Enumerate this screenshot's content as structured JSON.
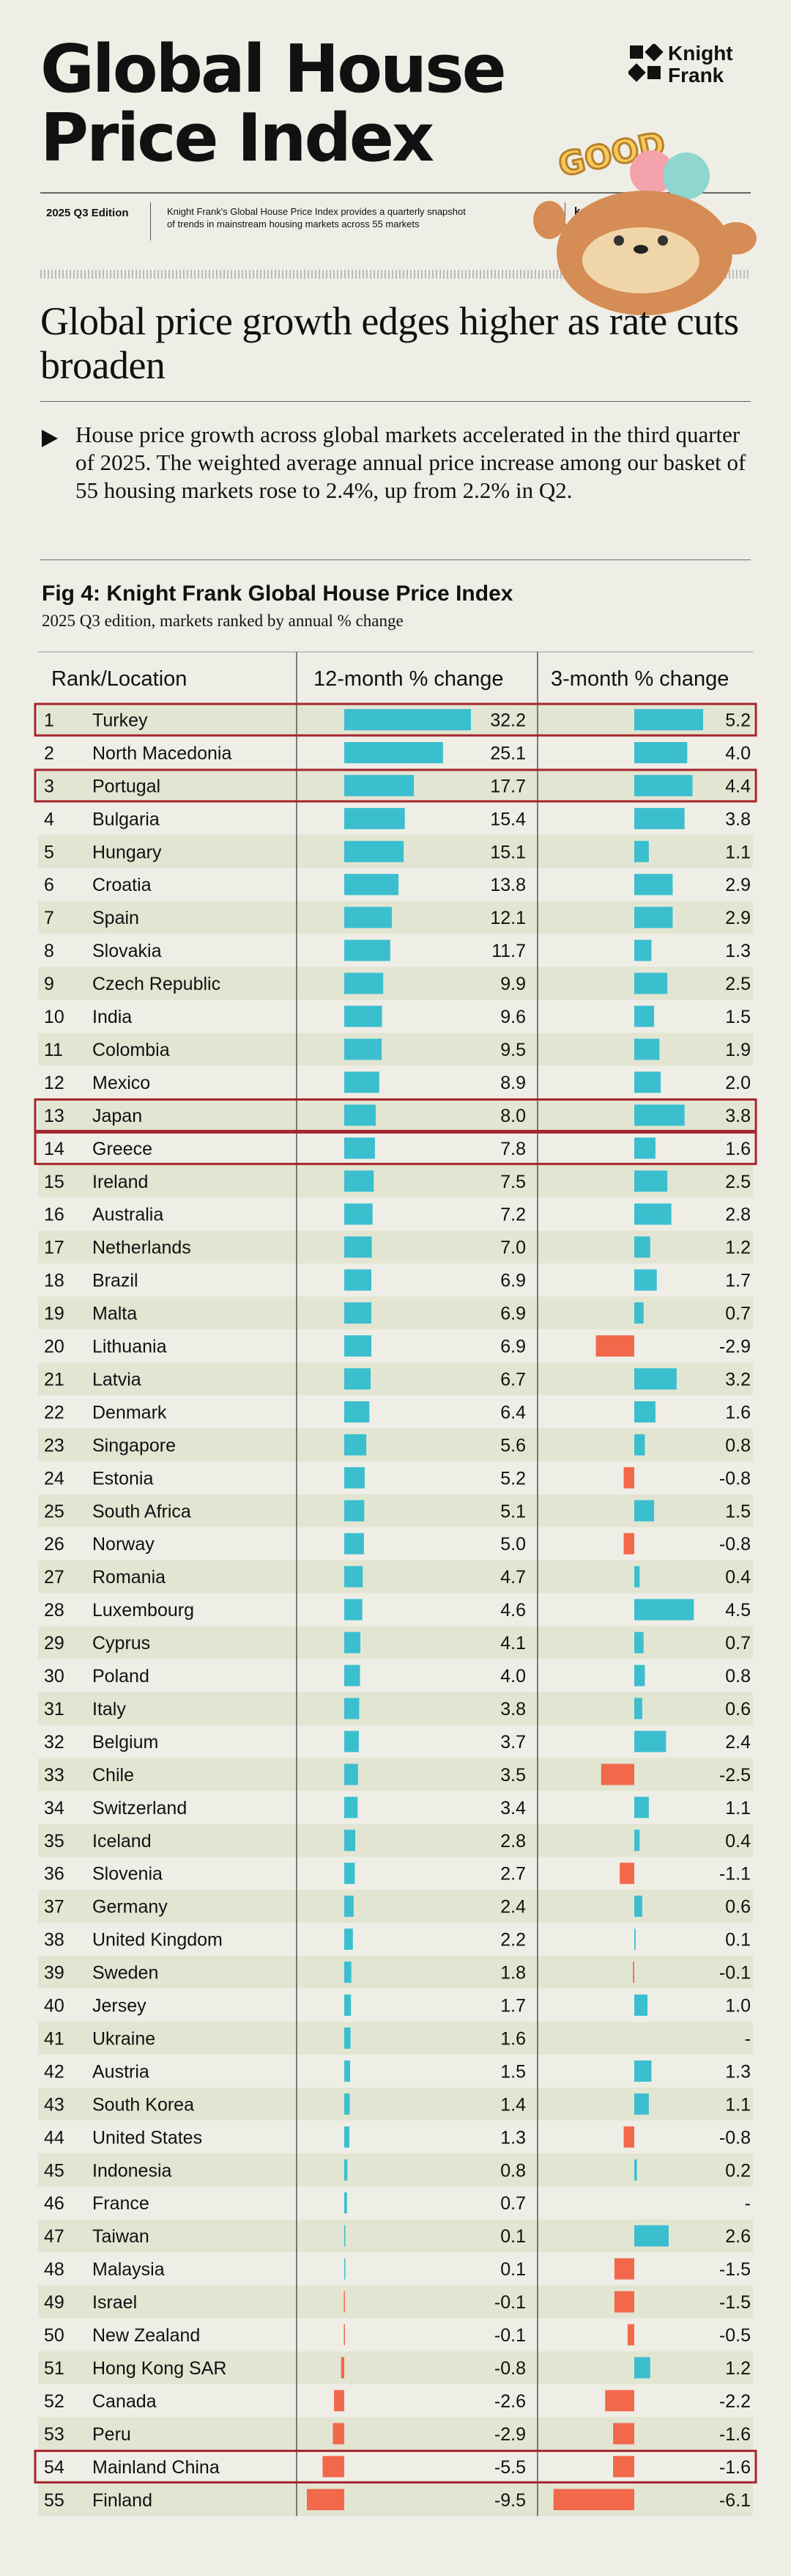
{
  "header": {
    "title_line1": "Global House",
    "title_line2": "Price Index",
    "logo_line1": "Knight",
    "logo_line2": "Frank",
    "edition": "2025 Q3 Edition",
    "description": "Knight Frank's Global House Price Index provides a quarterly snapshot of trends in mainstream housing markets across 55 markets",
    "partial_text": "k",
    "sticker_text": "GOOD"
  },
  "headline": "Global price growth edges higher as rate cuts broaden",
  "bullet": "House price growth across global markets accelerated in the third quarter of 2025. The weighted average annual price increase among our basket of 55 housing markets rose to 2.4%, up from 2.2% in Q2.",
  "figure": {
    "title": "Fig 4: Knight Frank Global House Price Index",
    "subtitle": "2025 Q3 edition, markets ranked by annual % change"
  },
  "colors": {
    "positive": "#3bbfcf",
    "negative": "#f2684b",
    "highlight": "#a4262c",
    "stripe": "#e3e5d3"
  },
  "chart_data": {
    "type": "table",
    "columns": [
      "Rank/Location",
      "12-month % change",
      "3-month % change"
    ],
    "rows": [
      {
        "rank": "1",
        "loc": "Turkey",
        "y12": 32.2,
        "y12t": "32.2",
        "m3": 5.2,
        "m3t": "5.2",
        "hl": true
      },
      {
        "rank": "2",
        "loc": "North Macedonia",
        "y12": 25.1,
        "y12t": "25.1",
        "m3": 4.0,
        "m3t": "4.0",
        "hl": false
      },
      {
        "rank": "3",
        "loc": "Portugal",
        "y12": 17.7,
        "y12t": "17.7",
        "m3": 4.4,
        "m3t": "4.4",
        "hl": true
      },
      {
        "rank": "4",
        "loc": "Bulgaria",
        "y12": 15.4,
        "y12t": "15.4",
        "m3": 3.8,
        "m3t": "3.8",
        "hl": false
      },
      {
        "rank": "5",
        "loc": "Hungary",
        "y12": 15.1,
        "y12t": "15.1",
        "m3": 1.1,
        "m3t": "1.1",
        "hl": false
      },
      {
        "rank": "6",
        "loc": "Croatia",
        "y12": 13.8,
        "y12t": "13.8",
        "m3": 2.9,
        "m3t": "2.9",
        "hl": false
      },
      {
        "rank": "7",
        "loc": "Spain",
        "y12": 12.1,
        "y12t": "12.1",
        "m3": 2.9,
        "m3t": "2.9",
        "hl": false
      },
      {
        "rank": "8",
        "loc": "Slovakia",
        "y12": 11.7,
        "y12t": "11.7",
        "m3": 1.3,
        "m3t": "1.3",
        "hl": false
      },
      {
        "rank": "9",
        "loc": "Czech Republic",
        "y12": 9.9,
        "y12t": "9.9",
        "m3": 2.5,
        "m3t": "2.5",
        "hl": false
      },
      {
        "rank": "10",
        "loc": "India",
        "y12": 9.6,
        "y12t": "9.6",
        "m3": 1.5,
        "m3t": "1.5",
        "hl": false
      },
      {
        "rank": "11",
        "loc": "Colombia",
        "y12": 9.5,
        "y12t": "9.5",
        "m3": 1.9,
        "m3t": "1.9",
        "hl": false
      },
      {
        "rank": "12",
        "loc": "Mexico",
        "y12": 8.9,
        "y12t": "8.9",
        "m3": 2.0,
        "m3t": "2.0",
        "hl": false
      },
      {
        "rank": "13",
        "loc": "Japan",
        "y12": 8.0,
        "y12t": "8.0",
        "m3": 3.8,
        "m3t": "3.8",
        "hl": true
      },
      {
        "rank": "14",
        "loc": "Greece",
        "y12": 7.8,
        "y12t": "7.8",
        "m3": 1.6,
        "m3t": "1.6",
        "hl": true
      },
      {
        "rank": "15",
        "loc": "Ireland",
        "y12": 7.5,
        "y12t": "7.5",
        "m3": 2.5,
        "m3t": "2.5",
        "hl": false
      },
      {
        "rank": "16",
        "loc": "Australia",
        "y12": 7.2,
        "y12t": "7.2",
        "m3": 2.8,
        "m3t": "2.8",
        "hl": false
      },
      {
        "rank": "17",
        "loc": "Netherlands",
        "y12": 7.0,
        "y12t": "7.0",
        "m3": 1.2,
        "m3t": "1.2",
        "hl": false
      },
      {
        "rank": "18",
        "loc": "Brazil",
        "y12": 6.9,
        "y12t": "6.9",
        "m3": 1.7,
        "m3t": "1.7",
        "hl": false
      },
      {
        "rank": "19",
        "loc": "Malta",
        "y12": 6.9,
        "y12t": "6.9",
        "m3": 0.7,
        "m3t": "0.7",
        "hl": false
      },
      {
        "rank": "20",
        "loc": "Lithuania",
        "y12": 6.9,
        "y12t": "6.9",
        "m3": -2.9,
        "m3t": "-2.9",
        "hl": false
      },
      {
        "rank": "21",
        "loc": "Latvia",
        "y12": 6.7,
        "y12t": "6.7",
        "m3": 3.2,
        "m3t": "3.2",
        "hl": false
      },
      {
        "rank": "22",
        "loc": "Denmark",
        "y12": 6.4,
        "y12t": "6.4",
        "m3": 1.6,
        "m3t": "1.6",
        "hl": false
      },
      {
        "rank": "23",
        "loc": "Singapore",
        "y12": 5.6,
        "y12t": "5.6",
        "m3": 0.8,
        "m3t": "0.8",
        "hl": false
      },
      {
        "rank": "24",
        "loc": "Estonia",
        "y12": 5.2,
        "y12t": "5.2",
        "m3": -0.8,
        "m3t": "-0.8",
        "hl": false
      },
      {
        "rank": "25",
        "loc": "South Africa",
        "y12": 5.1,
        "y12t": "5.1",
        "m3": 1.5,
        "m3t": "1.5",
        "hl": false
      },
      {
        "rank": "26",
        "loc": "Norway",
        "y12": 5.0,
        "y12t": "5.0",
        "m3": -0.8,
        "m3t": "-0.8",
        "hl": false
      },
      {
        "rank": "27",
        "loc": "Romania",
        "y12": 4.7,
        "y12t": "4.7",
        "m3": 0.4,
        "m3t": "0.4",
        "hl": false
      },
      {
        "rank": "28",
        "loc": "Luxembourg",
        "y12": 4.6,
        "y12t": "4.6",
        "m3": 4.5,
        "m3t": "4.5",
        "hl": false
      },
      {
        "rank": "29",
        "loc": "Cyprus",
        "y12": 4.1,
        "y12t": "4.1",
        "m3": 0.7,
        "m3t": "0.7",
        "hl": false
      },
      {
        "rank": "30",
        "loc": "Poland",
        "y12": 4.0,
        "y12t": "4.0",
        "m3": 0.8,
        "m3t": "0.8",
        "hl": false
      },
      {
        "rank": "31",
        "loc": "Italy",
        "y12": 3.8,
        "y12t": "3.8",
        "m3": 0.6,
        "m3t": "0.6",
        "hl": false
      },
      {
        "rank": "32",
        "loc": "Belgium",
        "y12": 3.7,
        "y12t": "3.7",
        "m3": 2.4,
        "m3t": "2.4",
        "hl": false
      },
      {
        "rank": "33",
        "loc": "Chile",
        "y12": 3.5,
        "y12t": "3.5",
        "m3": -2.5,
        "m3t": "-2.5",
        "hl": false
      },
      {
        "rank": "34",
        "loc": "Switzerland",
        "y12": 3.4,
        "y12t": "3.4",
        "m3": 1.1,
        "m3t": "1.1",
        "hl": false
      },
      {
        "rank": "35",
        "loc": "Iceland",
        "y12": 2.8,
        "y12t": "2.8",
        "m3": 0.4,
        "m3t": "0.4",
        "hl": false
      },
      {
        "rank": "36",
        "loc": "Slovenia",
        "y12": 2.7,
        "y12t": "2.7",
        "m3": -1.1,
        "m3t": "-1.1",
        "hl": false
      },
      {
        "rank": "37",
        "loc": "Germany",
        "y12": 2.4,
        "y12t": "2.4",
        "m3": 0.6,
        "m3t": "0.6",
        "hl": false
      },
      {
        "rank": "38",
        "loc": "United Kingdom",
        "y12": 2.2,
        "y12t": "2.2",
        "m3": 0.1,
        "m3t": "0.1",
        "hl": false
      },
      {
        "rank": "39",
        "loc": "Sweden",
        "y12": 1.8,
        "y12t": "1.8",
        "m3": -0.1,
        "m3t": "-0.1",
        "hl": false
      },
      {
        "rank": "40",
        "loc": "Jersey",
        "y12": 1.7,
        "y12t": "1.7",
        "m3": 1.0,
        "m3t": "1.0",
        "hl": false
      },
      {
        "rank": "41",
        "loc": "Ukraine",
        "y12": 1.6,
        "y12t": "1.6",
        "m3": null,
        "m3t": "-",
        "hl": false
      },
      {
        "rank": "42",
        "loc": "Austria",
        "y12": 1.5,
        "y12t": "1.5",
        "m3": 1.3,
        "m3t": "1.3",
        "hl": false
      },
      {
        "rank": "43",
        "loc": "South Korea",
        "y12": 1.4,
        "y12t": "1.4",
        "m3": 1.1,
        "m3t": "1.1",
        "hl": false
      },
      {
        "rank": "44",
        "loc": "United States",
        "y12": 1.3,
        "y12t": "1.3",
        "m3": -0.8,
        "m3t": "-0.8",
        "hl": false
      },
      {
        "rank": "45",
        "loc": "Indonesia",
        "y12": 0.8,
        "y12t": "0.8",
        "m3": 0.2,
        "m3t": "0.2",
        "hl": false
      },
      {
        "rank": "46",
        "loc": "France",
        "y12": 0.7,
        "y12t": "0.7",
        "m3": null,
        "m3t": "-",
        "hl": false
      },
      {
        "rank": "47",
        "loc": "Taiwan",
        "y12": 0.1,
        "y12t": "0.1",
        "m3": 2.6,
        "m3t": "2.6",
        "hl": false
      },
      {
        "rank": "48",
        "loc": "Malaysia",
        "y12": 0.1,
        "y12t": "0.1",
        "m3": -1.5,
        "m3t": "-1.5",
        "hl": false
      },
      {
        "rank": "49",
        "loc": "Israel",
        "y12": -0.1,
        "y12t": "-0.1",
        "m3": -1.5,
        "m3t": "-1.5",
        "hl": false
      },
      {
        "rank": "50",
        "loc": "New Zealand",
        "y12": -0.1,
        "y12t": "-0.1",
        "m3": -0.5,
        "m3t": "-0.5",
        "hl": false
      },
      {
        "rank": "51",
        "loc": "Hong Kong SAR",
        "y12": -0.8,
        "y12t": "-0.8",
        "m3": 1.2,
        "m3t": "1.2",
        "hl": false
      },
      {
        "rank": "52",
        "loc": "Canada",
        "y12": -2.6,
        "y12t": "-2.6",
        "m3": -2.2,
        "m3t": "-2.2",
        "hl": false
      },
      {
        "rank": "53",
        "loc": "Peru",
        "y12": -2.9,
        "y12t": "-2.9",
        "m3": -1.6,
        "m3t": "-1.6",
        "hl": false
      },
      {
        "rank": "54",
        "loc": "Mainland China",
        "y12": -5.5,
        "y12t": "-5.5",
        "m3": -1.6,
        "m3t": "-1.6",
        "hl": true
      },
      {
        "rank": "55",
        "loc": "Finland",
        "y12": -9.5,
        "y12t": "-9.5",
        "m3": -6.1,
        "m3t": "-6.1",
        "hl": false
      }
    ]
  }
}
